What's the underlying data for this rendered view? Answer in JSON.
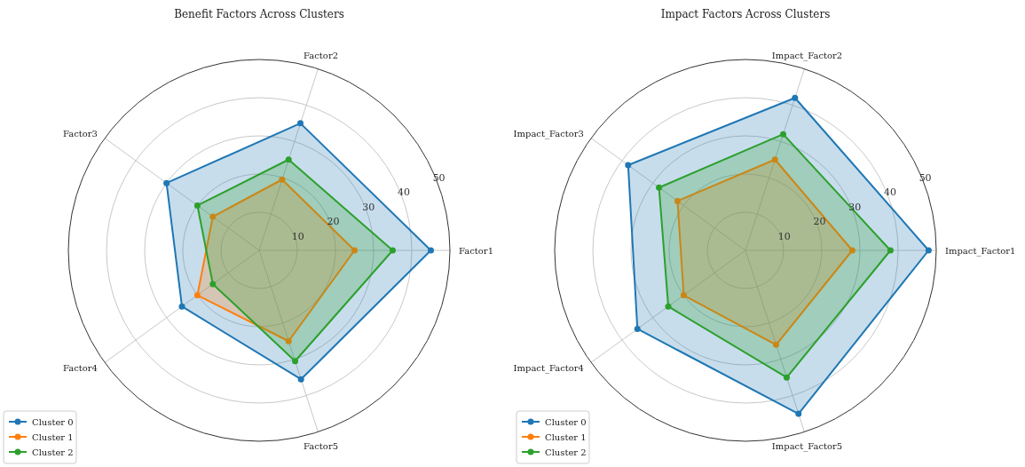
{
  "chart_data": [
    {
      "type": "radar",
      "title": "Benefit Factors Across Clusters",
      "categories": [
        "Factor2",
        "Factor1",
        "Factor5",
        "Factor4",
        "Factor3"
      ],
      "ylim": [
        0,
        50
      ],
      "yticks": [
        10,
        20,
        30,
        40,
        50
      ],
      "grid": true,
      "legend": "bottom left",
      "marker": "circle",
      "series": [
        {
          "name": "Cluster 0",
          "color": "#1f77b4",
          "values": [
            35,
            45,
            35.5,
            25,
            30
          ]
        },
        {
          "name": "Cluster 1",
          "color": "#ff7f0e",
          "values": [
            19.5,
            25,
            25,
            20,
            15
          ]
        },
        {
          "name": "Cluster 2",
          "color": "#2ca02c",
          "values": [
            25,
            35,
            30.5,
            15,
            20
          ]
        }
      ]
    },
    {
      "type": "radar",
      "title": "Impact Factors Across Clusters",
      "categories": [
        "Impact_Factor2",
        "Impact_Factor1",
        "Impact_Factor5",
        "Impact_Factor4",
        "Impact_Factor3"
      ],
      "ylim": [
        0,
        50
      ],
      "yticks": [
        10,
        20,
        30,
        40,
        50
      ],
      "grid": true,
      "legend": "bottom left",
      "marker": "circle",
      "series": [
        {
          "name": "Cluster 0",
          "color": "#1f77b4",
          "values": [
            42,
            48,
            45,
            35,
            38
          ]
        },
        {
          "name": "Cluster 1",
          "color": "#ff7f0e",
          "values": [
            25,
            28,
            26,
            20,
            22
          ]
        },
        {
          "name": "Cluster 2",
          "color": "#2ca02c",
          "values": [
            32,
            38,
            35,
            25,
            28
          ]
        }
      ]
    }
  ]
}
